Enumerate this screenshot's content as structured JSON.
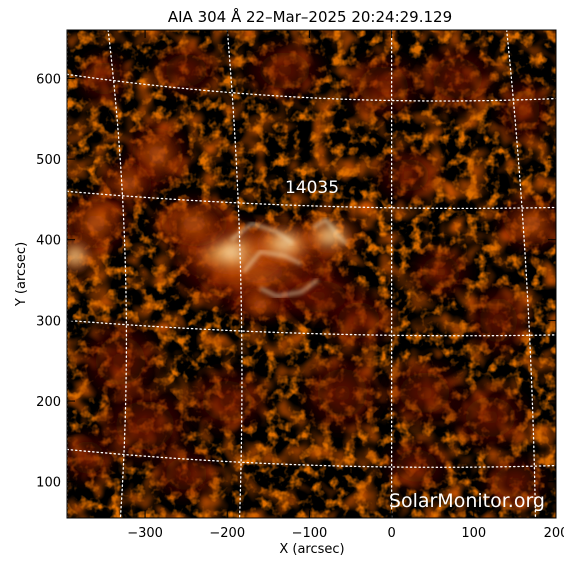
{
  "image": {
    "title": "AIA 304 Å 22–Mar–2025 20:24:29.129",
    "region_label": "14035",
    "watermark": "SolarMonitor.org",
    "colormap": [
      "#000000",
      "#3a0500",
      "#7a1500",
      "#b83a00",
      "#e26a10",
      "#f8a84a",
      "#fff1c8"
    ]
  },
  "axes": {
    "xlabel": "X (arcsec)",
    "ylabel": "Y (arcsec)",
    "xlim": [
      -395,
      200
    ],
    "ylim": [
      55,
      660
    ],
    "xticks": [
      {
        "value": -300,
        "label": "−300"
      },
      {
        "value": -200,
        "label": "−200"
      },
      {
        "value": -100,
        "label": "−100"
      },
      {
        "value": 0,
        "label": "0"
      },
      {
        "value": 100,
        "label": "100"
      },
      {
        "value": 200,
        "label": "200"
      }
    ],
    "yticks": [
      {
        "value": 100,
        "label": "100"
      },
      {
        "value": 200,
        "label": "200"
      },
      {
        "value": 300,
        "label": "300"
      },
      {
        "value": 400,
        "label": "400"
      },
      {
        "value": 500,
        "label": "500"
      },
      {
        "value": 600,
        "label": "600"
      }
    ]
  },
  "grid": "heliographic, dotted white"
}
